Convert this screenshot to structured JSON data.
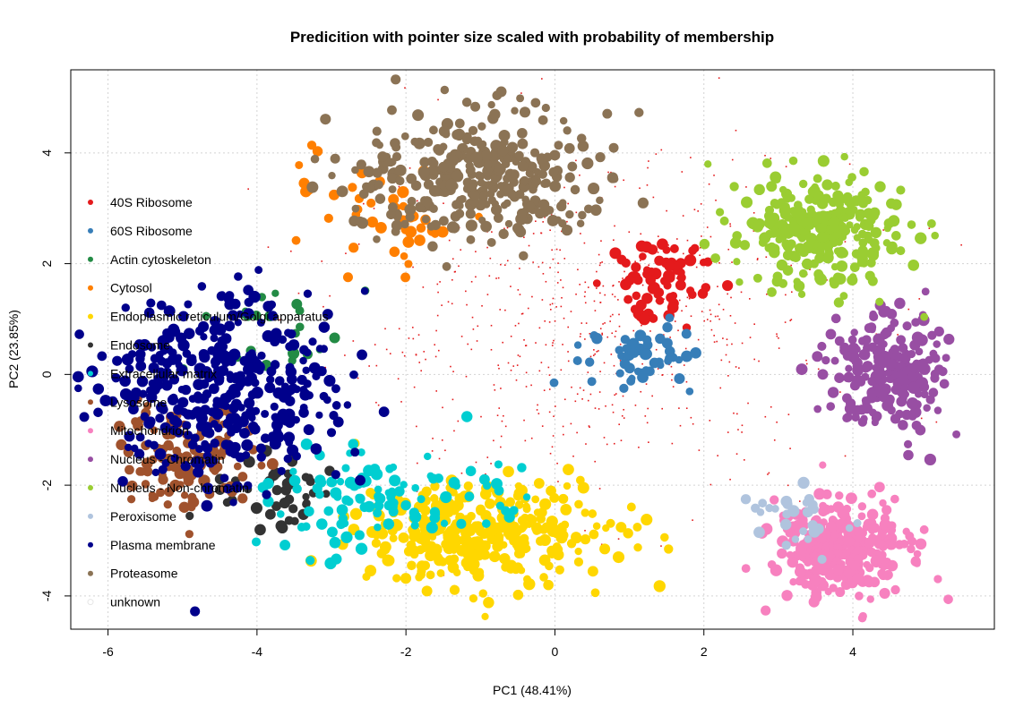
{
  "chart_data": {
    "type": "scatter",
    "title": "Predicition with pointer size scaled with probability of membership",
    "xlabel": "PC1 (48.41%)",
    "ylabel": "PC2 (23.85%)",
    "xlim": [
      -6.5,
      5.9
    ],
    "ylim": [
      -4.6,
      5.5
    ],
    "xticks": [
      -6,
      -4,
      -2,
      0,
      2,
      4
    ],
    "yticks": [
      -4,
      -2,
      0,
      2,
      4
    ],
    "grid": true,
    "legend_position": "left",
    "series": [
      {
        "name": "40S Ribosome",
        "color": "#E41A1C",
        "cx": 1.4,
        "cy": 1.75,
        "sx": 0.35,
        "sy": 0.35,
        "n": 70,
        "sizeMin": 0.5,
        "sizeMax": 1.0
      },
      {
        "name": "60S Ribosome",
        "color": "#377EB8",
        "cx": 1.15,
        "cy": 0.3,
        "sx": 0.35,
        "sy": 0.3,
        "n": 55,
        "sizeMin": 0.5,
        "sizeMax": 1.0
      },
      {
        "name": "Actin cytoskeleton",
        "color": "#238B45",
        "cx": -3.8,
        "cy": 0.9,
        "sx": 0.5,
        "sy": 0.45,
        "n": 22,
        "sizeMin": 0.5,
        "sizeMax": 1.0
      },
      {
        "name": "Cytosol",
        "color": "#FF7F00",
        "cx": -2.2,
        "cy": 2.9,
        "sx": 0.65,
        "sy": 0.45,
        "n": 45,
        "sizeMin": 0.5,
        "sizeMax": 1.0
      },
      {
        "name": "Endoplasmic reticulum/Golgi apparatus",
        "color": "#FFD700",
        "cx": -1.0,
        "cy": -2.85,
        "sx": 0.85,
        "sy": 0.45,
        "n": 340,
        "sizeMin": 0.5,
        "sizeMax": 1.0
      },
      {
        "name": "Endosome",
        "color": "#333333",
        "cx": -3.9,
        "cy": -2.2,
        "sx": 0.5,
        "sy": 0.4,
        "n": 45,
        "sizeMin": 0.5,
        "sizeMax": 1.0
      },
      {
        "name": "Extracellular matrix",
        "color": "#00CED1",
        "cx": -2.3,
        "cy": -2.25,
        "sx": 0.8,
        "sy": 0.45,
        "n": 110,
        "sizeMin": 0.5,
        "sizeMax": 1.0
      },
      {
        "name": "Lysosome",
        "color": "#A0522D",
        "cx": -4.95,
        "cy": -1.5,
        "sx": 0.45,
        "sy": 0.45,
        "n": 110,
        "sizeMin": 0.5,
        "sizeMax": 1.0
      },
      {
        "name": "Mitochondrion",
        "color": "#F781BF",
        "cx": 3.85,
        "cy": -3.15,
        "sx": 0.45,
        "sy": 0.4,
        "n": 330,
        "sizeMin": 0.5,
        "sizeMax": 1.0
      },
      {
        "name": "Nucleus - Chromatin",
        "color": "#984EA3",
        "cx": 4.45,
        "cy": 0.0,
        "sx": 0.4,
        "sy": 0.55,
        "n": 210,
        "sizeMin": 0.5,
        "sizeMax": 1.0
      },
      {
        "name": "Nucleus - Non-chromatin",
        "color": "#9ACD32",
        "cx": 3.55,
        "cy": 2.55,
        "sx": 0.55,
        "sy": 0.5,
        "n": 290,
        "sizeMin": 0.5,
        "sizeMax": 1.0
      },
      {
        "name": "Peroxisome",
        "color": "#B0C4DE",
        "cx": 3.2,
        "cy": -2.7,
        "sx": 0.4,
        "sy": 0.3,
        "n": 28,
        "sizeMin": 0.5,
        "sizeMax": 1.0
      },
      {
        "name": "Plasma membrane",
        "color": "#00008B",
        "cx": -4.4,
        "cy": -0.2,
        "sx": 0.75,
        "sy": 0.85,
        "n": 380,
        "sizeMin": 0.5,
        "sizeMax": 1.0
      },
      {
        "name": "Proteasome",
        "color": "#8B7355",
        "cx": -1.0,
        "cy": 3.6,
        "sx": 0.85,
        "sy": 0.55,
        "n": 330,
        "sizeMin": 0.5,
        "sizeMax": 1.0
      },
      {
        "name": "unknown",
        "color": "#F2F2F2",
        "cx": 0.0,
        "cy": 0.0,
        "sx": 2.5,
        "sy": 2.0,
        "n": 0,
        "sizeMin": 0.05,
        "sizeMax": 0.1
      }
    ],
    "unassigned_scatter": {
      "color": "#E41A1C",
      "cx": 0.5,
      "cy": 0.9,
      "sx": 1.7,
      "sy": 1.5,
      "n": 650
    }
  }
}
